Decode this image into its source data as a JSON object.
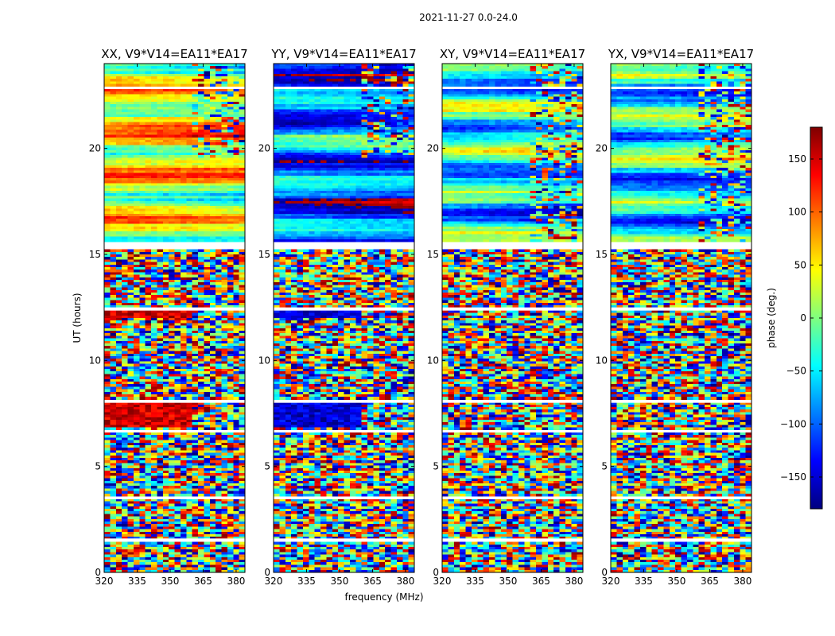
{
  "chart_data": {
    "type": "heatmap",
    "suptitle": "2021-11-27 0.0-24.0",
    "xlabel": "frequency (MHz)",
    "ylabel": "UT (hours)",
    "xlim": [
      320,
      384
    ],
    "ylim": [
      0,
      24
    ],
    "xticks": [
      320,
      335,
      350,
      365,
      380
    ],
    "yticks": [
      0,
      5,
      10,
      15,
      20
    ],
    "colorbar": {
      "label": "phase (deg.)",
      "range": [
        -180,
        180
      ],
      "ticks": [
        150,
        100,
        50,
        0,
        -50,
        -100,
        -150
      ],
      "tick_labels": [
        "150",
        "100",
        "50",
        "0",
        "−50",
        "−100",
        "−150"
      ],
      "colormap": "jet",
      "colormap_stops": [
        "#00007f",
        "#0000ff",
        "#007fff",
        "#00ffff",
        "#7fff7f",
        "#ffff00",
        "#ff7f00",
        "#ff0000",
        "#7f0000"
      ]
    },
    "panels": [
      {
        "title": "XX, V9*V14=EA11*EA17",
        "polarization": "XX",
        "day_mean_phase_deg": 45,
        "flagged_night_mean_phase_deg": 150
      },
      {
        "title": "YY, V9*V14=EA11*EA17",
        "polarization": "YY",
        "day_mean_phase_deg": -90,
        "flagged_night_mean_phase_deg": -150
      },
      {
        "title": "XY, V9*V14=EA11*EA17",
        "polarization": "XY",
        "day_mean_phase_deg": -40,
        "flagged_night_mean_phase_deg": -10
      },
      {
        "title": "YX, V9*V14=EA11*EA17",
        "polarization": "YX",
        "day_mean_phase_deg": -40,
        "flagged_night_mean_phase_deg": 0
      }
    ],
    "gaps_ut_hours": [
      [
        1.5,
        1.6
      ],
      [
        3.45,
        3.55
      ],
      [
        6.6,
        6.7
      ],
      [
        8.0,
        8.1
      ],
      [
        12.35,
        12.5
      ],
      [
        15.3,
        15.55
      ],
      [
        22.8,
        22.9
      ]
    ],
    "note": "Night (0-15.5 h UT) shows noisy phase; day (15.5-24 h UT) shows coherent phase bands"
  }
}
